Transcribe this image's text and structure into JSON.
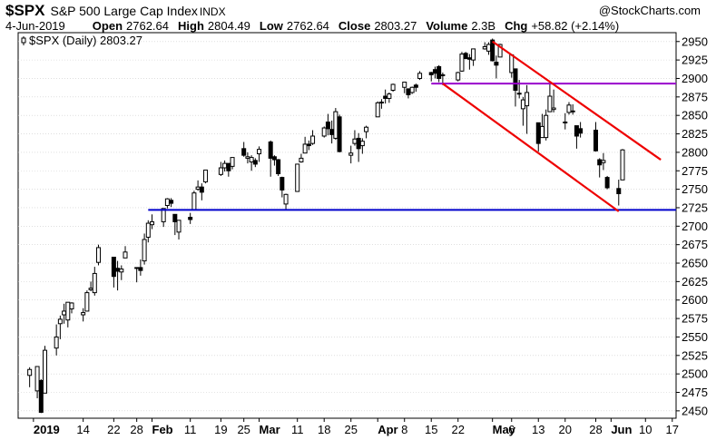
{
  "header": {
    "ticker": "$SPX",
    "name": "S&P 500 Large Cap Index",
    "exchange": "INDX",
    "watermark": "@StockCharts.com",
    "date": "4-Jun-2019",
    "open_label": "Open",
    "open_value": "2762.64",
    "high_label": "High",
    "high_value": "2804.49",
    "low_label": "Low",
    "low_value": "2762.64",
    "close_label": "Close",
    "close_value": "2803.27",
    "volume_label": "Volume",
    "volume_value": "2.3B",
    "chg_label": "Chg",
    "chg_value": "+58.82 (+2.14%)"
  },
  "legend": {
    "text": "$SPX (Daily) 2803.27"
  },
  "colors": {
    "candle": "#000000",
    "support_line": "#0000cc",
    "resistance_line": "#9900cc",
    "channel_line": "#ee0000",
    "grid": "#cccccc",
    "axis": "#000000"
  },
  "chart_data": {
    "type": "candlestick",
    "title": "$SPX (Daily) 2803.27",
    "ylim": [
      2440,
      2962
    ],
    "y_ticks": [
      2450,
      2475,
      2500,
      2525,
      2550,
      2575,
      2600,
      2625,
      2650,
      2675,
      2700,
      2725,
      2750,
      2775,
      2800,
      2825,
      2850,
      2875,
      2900,
      2925,
      2950
    ],
    "x_range": [
      "2018-12-28",
      "2019-06-18"
    ],
    "x_ticks": [
      {
        "label": "2019",
        "date": "2019-01-01",
        "bold": true
      },
      {
        "label": "14",
        "date": "2019-01-14",
        "bold": false
      },
      {
        "label": "22",
        "date": "2019-01-22",
        "bold": false
      },
      {
        "label": "28",
        "date": "2019-01-28",
        "bold": false
      },
      {
        "label": "Feb",
        "date": "2019-02-01",
        "bold": true
      },
      {
        "label": "11",
        "date": "2019-02-11",
        "bold": false
      },
      {
        "label": "19",
        "date": "2019-02-19",
        "bold": false
      },
      {
        "label": "25",
        "date": "2019-02-25",
        "bold": false
      },
      {
        "label": "Mar",
        "date": "2019-03-01",
        "bold": true
      },
      {
        "label": "11",
        "date": "2019-03-11",
        "bold": false
      },
      {
        "label": "18",
        "date": "2019-03-18",
        "bold": false
      },
      {
        "label": "25",
        "date": "2019-03-25",
        "bold": false
      },
      {
        "label": "Apr",
        "date": "2019-04-01",
        "bold": true
      },
      {
        "label": "8",
        "date": "2019-04-08",
        "bold": false
      },
      {
        "label": "15",
        "date": "2019-04-15",
        "bold": false
      },
      {
        "label": "22",
        "date": "2019-04-22",
        "bold": false
      },
      {
        "label": "May",
        "date": "2019-05-01",
        "bold": true
      },
      {
        "label": "6",
        "date": "2019-05-06",
        "bold": false
      },
      {
        "label": "13",
        "date": "2019-05-13",
        "bold": false
      },
      {
        "label": "20",
        "date": "2019-05-20",
        "bold": false
      },
      {
        "label": "28",
        "date": "2019-05-28",
        "bold": false
      },
      {
        "label": "Jun",
        "date": "2019-06-01",
        "bold": true
      },
      {
        "label": "10",
        "date": "2019-06-10",
        "bold": false
      },
      {
        "label": "17",
        "date": "2019-06-17",
        "bold": false
      }
    ],
    "candles": [
      {
        "date": "2018-12-31",
        "o": 2498,
        "h": 2509,
        "l": 2482,
        "c": 2506
      },
      {
        "date": "2019-01-02",
        "o": 2477,
        "h": 2510,
        "l": 2467,
        "c": 2510
      },
      {
        "date": "2019-01-03",
        "o": 2491,
        "h": 2493,
        "l": 2447,
        "c": 2448
      },
      {
        "date": "2019-01-04",
        "o": 2474,
        "h": 2538,
        "l": 2474,
        "c": 2532
      },
      {
        "date": "2019-01-07",
        "o": 2535,
        "h": 2567,
        "l": 2525,
        "c": 2550
      },
      {
        "date": "2019-01-08",
        "o": 2568,
        "h": 2579,
        "l": 2547,
        "c": 2574
      },
      {
        "date": "2019-01-09",
        "o": 2580,
        "h": 2595,
        "l": 2568,
        "c": 2585
      },
      {
        "date": "2019-01-10",
        "o": 2573,
        "h": 2597,
        "l": 2563,
        "c": 2597
      },
      {
        "date": "2019-01-11",
        "o": 2588,
        "h": 2597,
        "l": 2582,
        "c": 2596
      },
      {
        "date": "2019-01-14",
        "o": 2580,
        "h": 2589,
        "l": 2571,
        "c": 2583
      },
      {
        "date": "2019-01-15",
        "o": 2585,
        "h": 2613,
        "l": 2585,
        "c": 2610
      },
      {
        "date": "2019-01-16",
        "o": 2614,
        "h": 2625,
        "l": 2612,
        "c": 2616
      },
      {
        "date": "2019-01-17",
        "o": 2610,
        "h": 2645,
        "l": 2606,
        "c": 2636
      },
      {
        "date": "2019-01-18",
        "o": 2651,
        "h": 2675,
        "l": 2647,
        "c": 2671
      },
      {
        "date": "2019-01-22",
        "o": 2658,
        "h": 2658,
        "l": 2617,
        "c": 2632
      },
      {
        "date": "2019-01-23",
        "o": 2643,
        "h": 2653,
        "l": 2613,
        "c": 2639
      },
      {
        "date": "2019-01-24",
        "o": 2638,
        "h": 2647,
        "l": 2627,
        "c": 2642
      },
      {
        "date": "2019-01-25",
        "o": 2657,
        "h": 2673,
        "l": 2657,
        "c": 2665
      },
      {
        "date": "2019-01-28",
        "o": 2644,
        "h": 2644,
        "l": 2624,
        "c": 2643
      },
      {
        "date": "2019-01-29",
        "o": 2644,
        "h": 2655,
        "l": 2633,
        "c": 2640
      },
      {
        "date": "2019-01-30",
        "o": 2653,
        "h": 2690,
        "l": 2648,
        "c": 2682
      },
      {
        "date": "2019-01-31",
        "o": 2685,
        "h": 2708,
        "l": 2678,
        "c": 2704
      },
      {
        "date": "2019-02-01",
        "o": 2702,
        "h": 2716,
        "l": 2696,
        "c": 2706
      },
      {
        "date": "2019-02-04",
        "o": 2706,
        "h": 2724,
        "l": 2699,
        "c": 2724
      },
      {
        "date": "2019-02-05",
        "o": 2728,
        "h": 2738,
        "l": 2724,
        "c": 2737
      },
      {
        "date": "2019-02-06",
        "o": 2735,
        "h": 2738,
        "l": 2726,
        "c": 2731
      },
      {
        "date": "2019-02-07",
        "o": 2716,
        "h": 2716,
        "l": 2688,
        "c": 2706
      },
      {
        "date": "2019-02-08",
        "o": 2692,
        "h": 2708,
        "l": 2682,
        "c": 2708
      },
      {
        "date": "2019-02-11",
        "o": 2712,
        "h": 2718,
        "l": 2703,
        "c": 2709
      },
      {
        "date": "2019-02-12",
        "o": 2722,
        "h": 2748,
        "l": 2722,
        "c": 2745
      },
      {
        "date": "2019-02-13",
        "o": 2750,
        "h": 2762,
        "l": 2748,
        "c": 2753
      },
      {
        "date": "2019-02-14",
        "o": 2753,
        "h": 2758,
        "l": 2735,
        "c": 2746
      },
      {
        "date": "2019-02-15",
        "o": 2760,
        "h": 2776,
        "l": 2758,
        "c": 2776
      },
      {
        "date": "2019-02-19",
        "o": 2770,
        "h": 2787,
        "l": 2768,
        "c": 2779
      },
      {
        "date": "2019-02-20",
        "o": 2779,
        "h": 2789,
        "l": 2774,
        "c": 2785
      },
      {
        "date": "2019-02-21",
        "o": 2785,
        "h": 2785,
        "l": 2767,
        "c": 2775
      },
      {
        "date": "2019-02-22",
        "o": 2781,
        "h": 2793,
        "l": 2777,
        "c": 2793
      },
      {
        "date": "2019-02-25",
        "o": 2805,
        "h": 2814,
        "l": 2794,
        "c": 2796
      },
      {
        "date": "2019-02-26",
        "o": 2792,
        "h": 2800,
        "l": 2785,
        "c": 2794
      },
      {
        "date": "2019-02-27",
        "o": 2787,
        "h": 2796,
        "l": 2775,
        "c": 2793
      },
      {
        "date": "2019-02-28",
        "o": 2789,
        "h": 2792,
        "l": 2780,
        "c": 2784
      },
      {
        "date": "2019-03-01",
        "o": 2798,
        "h": 2808,
        "l": 2787,
        "c": 2804
      },
      {
        "date": "2019-03-04",
        "o": 2814,
        "h": 2816,
        "l": 2767,
        "c": 2792
      },
      {
        "date": "2019-03-05",
        "o": 2794,
        "h": 2796,
        "l": 2782,
        "c": 2790
      },
      {
        "date": "2019-03-06",
        "o": 2790,
        "h": 2791,
        "l": 2768,
        "c": 2771
      },
      {
        "date": "2019-03-07",
        "o": 2766,
        "h": 2767,
        "l": 2739,
        "c": 2749
      },
      {
        "date": "2019-03-08",
        "o": 2730,
        "h": 2744,
        "l": 2722,
        "c": 2743
      },
      {
        "date": "2019-03-11",
        "o": 2747,
        "h": 2784,
        "l": 2747,
        "c": 2784
      },
      {
        "date": "2019-03-12",
        "o": 2787,
        "h": 2798,
        "l": 2786,
        "c": 2792
      },
      {
        "date": "2019-03-13",
        "o": 2799,
        "h": 2821,
        "l": 2799,
        "c": 2811
      },
      {
        "date": "2019-03-14",
        "o": 2811,
        "h": 2816,
        "l": 2803,
        "c": 2809
      },
      {
        "date": "2019-03-15",
        "o": 2812,
        "h": 2830,
        "l": 2810,
        "c": 2822
      },
      {
        "date": "2019-03-18",
        "o": 2822,
        "h": 2835,
        "l": 2820,
        "c": 2833
      },
      {
        "date": "2019-03-19",
        "o": 2841,
        "h": 2852,
        "l": 2823,
        "c": 2832
      },
      {
        "date": "2019-03-20",
        "o": 2831,
        "h": 2843,
        "l": 2812,
        "c": 2824
      },
      {
        "date": "2019-03-21",
        "o": 2819,
        "h": 2860,
        "l": 2817,
        "c": 2855
      },
      {
        "date": "2019-03-22",
        "o": 2848,
        "h": 2851,
        "l": 2800,
        "c": 2801
      },
      {
        "date": "2019-03-25",
        "o": 2796,
        "h": 2809,
        "l": 2785,
        "c": 2799
      },
      {
        "date": "2019-03-26",
        "o": 2812,
        "h": 2830,
        "l": 2809,
        "c": 2818
      },
      {
        "date": "2019-03-27",
        "o": 2819,
        "h": 2826,
        "l": 2787,
        "c": 2805
      },
      {
        "date": "2019-03-28",
        "o": 2809,
        "h": 2819,
        "l": 2798,
        "c": 2815
      },
      {
        "date": "2019-03-29",
        "o": 2828,
        "h": 2836,
        "l": 2819,
        "c": 2834
      },
      {
        "date": "2019-04-01",
        "o": 2848,
        "h": 2869,
        "l": 2848,
        "c": 2867
      },
      {
        "date": "2019-04-02",
        "o": 2868,
        "h": 2872,
        "l": 2859,
        "c": 2867
      },
      {
        "date": "2019-04-03",
        "o": 2876,
        "h": 2885,
        "l": 2866,
        "c": 2873
      },
      {
        "date": "2019-04-04",
        "o": 2873,
        "h": 2881,
        "l": 2867,
        "c": 2879
      },
      {
        "date": "2019-04-05",
        "o": 2884,
        "h": 2893,
        "l": 2882,
        "c": 2892
      },
      {
        "date": "2019-04-08",
        "o": 2888,
        "h": 2895,
        "l": 2880,
        "c": 2895
      },
      {
        "date": "2019-04-09",
        "o": 2886,
        "h": 2886,
        "l": 2873,
        "c": 2878
      },
      {
        "date": "2019-04-10",
        "o": 2881,
        "h": 2889,
        "l": 2879,
        "c": 2888
      },
      {
        "date": "2019-04-11",
        "o": 2891,
        "h": 2893,
        "l": 2882,
        "c": 2888
      },
      {
        "date": "2019-04-12",
        "o": 2900,
        "h": 2910,
        "l": 2898,
        "c": 2907
      },
      {
        "date": "2019-04-15",
        "o": 2908,
        "h": 2909,
        "l": 2896,
        "c": 2905
      },
      {
        "date": "2019-04-16",
        "o": 2912,
        "h": 2916,
        "l": 2900,
        "c": 2907
      },
      {
        "date": "2019-04-17",
        "o": 2916,
        "h": 2918,
        "l": 2895,
        "c": 2900
      },
      {
        "date": "2019-04-18",
        "o": 2904,
        "h": 2908,
        "l": 2891,
        "c": 2905
      },
      {
        "date": "2019-04-22",
        "o": 2898,
        "h": 2909,
        "l": 2896,
        "c": 2908
      },
      {
        "date": "2019-04-23",
        "o": 2910,
        "h": 2936,
        "l": 2909,
        "c": 2933
      },
      {
        "date": "2019-04-24",
        "o": 2934,
        "h": 2936,
        "l": 2926,
        "c": 2927
      },
      {
        "date": "2019-04-25",
        "o": 2928,
        "h": 2933,
        "l": 2912,
        "c": 2926
      },
      {
        "date": "2019-04-26",
        "o": 2925,
        "h": 2940,
        "l": 2917,
        "c": 2940
      },
      {
        "date": "2019-04-29",
        "o": 2940,
        "h": 2949,
        "l": 2939,
        "c": 2943
      },
      {
        "date": "2019-04-30",
        "o": 2937,
        "h": 2949,
        "l": 2932,
        "c": 2946
      },
      {
        "date": "2019-05-01",
        "o": 2952,
        "h": 2954,
        "l": 2923,
        "c": 2924
      },
      {
        "date": "2019-05-02",
        "o": 2922,
        "h": 2931,
        "l": 2900,
        "c": 2918
      },
      {
        "date": "2019-05-03",
        "o": 2929,
        "h": 2947,
        "l": 2929,
        "c": 2946
      },
      {
        "date": "2019-05-06",
        "o": 2908,
        "h": 2932,
        "l": 2901,
        "c": 2932
      },
      {
        "date": "2019-05-07",
        "o": 2913,
        "h": 2913,
        "l": 2862,
        "c": 2884
      },
      {
        "date": "2019-05-08",
        "o": 2880,
        "h": 2898,
        "l": 2873,
        "c": 2880
      },
      {
        "date": "2019-05-09",
        "o": 2859,
        "h": 2875,
        "l": 2836,
        "c": 2871
      },
      {
        "date": "2019-05-10",
        "o": 2863,
        "h": 2891,
        "l": 2825,
        "c": 2881
      },
      {
        "date": "2019-05-13",
        "o": 2840,
        "h": 2840,
        "l": 2801,
        "c": 2812
      },
      {
        "date": "2019-05-14",
        "o": 2820,
        "h": 2852,
        "l": 2820,
        "c": 2835
      },
      {
        "date": "2019-05-15",
        "o": 2820,
        "h": 2858,
        "l": 2816,
        "c": 2850
      },
      {
        "date": "2019-05-16",
        "o": 2855,
        "h": 2892,
        "l": 2855,
        "c": 2876
      },
      {
        "date": "2019-05-17",
        "o": 2858,
        "h": 2885,
        "l": 2854,
        "c": 2860
      },
      {
        "date": "2019-05-20",
        "o": 2841,
        "h": 2853,
        "l": 2831,
        "c": 2840
      },
      {
        "date": "2019-05-21",
        "o": 2854,
        "h": 2868,
        "l": 2851,
        "c": 2864
      },
      {
        "date": "2019-05-22",
        "o": 2856,
        "h": 2865,
        "l": 2851,
        "c": 2856
      },
      {
        "date": "2019-05-23",
        "o": 2836,
        "h": 2836,
        "l": 2805,
        "c": 2822
      },
      {
        "date": "2019-05-24",
        "o": 2832,
        "h": 2841,
        "l": 2820,
        "c": 2826
      },
      {
        "date": "2019-05-28",
        "o": 2830,
        "h": 2841,
        "l": 2801,
        "c": 2802
      },
      {
        "date": "2019-05-29",
        "o": 2790,
        "h": 2792,
        "l": 2766,
        "c": 2783
      },
      {
        "date": "2019-05-30",
        "o": 2786,
        "h": 2799,
        "l": 2776,
        "c": 2789
      },
      {
        "date": "2019-05-31",
        "o": 2766,
        "h": 2768,
        "l": 2750,
        "c": 2752
      },
      {
        "date": "2019-06-03",
        "o": 2751,
        "h": 2763,
        "l": 2728,
        "c": 2744
      },
      {
        "date": "2019-06-04",
        "o": 2762.64,
        "h": 2804.49,
        "l": 2762.64,
        "c": 2803.27
      }
    ],
    "annotations": [
      {
        "name": "support",
        "type": "horizontal",
        "y": 2722,
        "x_from": "2019-01-31",
        "color": "#0000cc"
      },
      {
        "name": "resistance",
        "type": "horizontal",
        "y": 2893,
        "x_from": "2019-04-15",
        "color": "#9900cc"
      },
      {
        "name": "channel-upper",
        "type": "trendline",
        "from": {
          "date": "2019-05-01",
          "y": 2950
        },
        "to": {
          "date": "2019-06-14",
          "y": 2790
        },
        "color": "#ee0000"
      },
      {
        "name": "channel-lower",
        "type": "trendline",
        "from": {
          "date": "2019-04-18",
          "y": 2893
        },
        "to": {
          "date": "2019-06-03",
          "y": 2720
        },
        "color": "#ee0000"
      }
    ]
  }
}
